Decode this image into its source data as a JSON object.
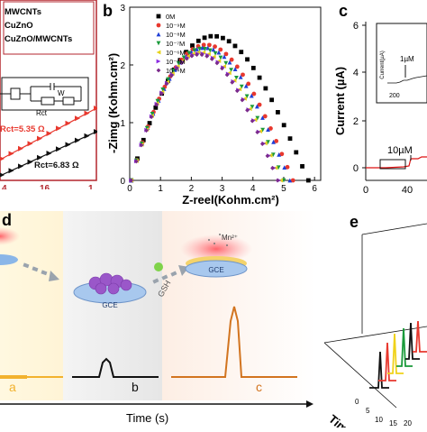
{
  "panels": {
    "a": {
      "legend": [
        "MWCNTs",
        "CuZnO",
        "CuZnO/MWCNTs"
      ],
      "legend_sub": "x",
      "circuit_label": "Rct",
      "circuit_w": "W",
      "ann_red": "Rct=5.35 Ω",
      "ann_black": "Rct=6.83 Ω",
      "xticks": [
        "4",
        "16",
        "1"
      ],
      "colors": {
        "red": "#e8382e",
        "black": "#111111",
        "border": "#b3262d"
      }
    },
    "b": {
      "label": "b",
      "legend": [
        "0M",
        "10⁻⁹M",
        "10⁻⁸M",
        "10⁻⁷M",
        "10⁻⁶M",
        "10⁻⁵M",
        "10⁻⁴M"
      ],
      "xlabel": "Z-reel(Kohm.cm²)",
      "ylabel": "-Zimg (Kohm.cm²)"
    },
    "c": {
      "label": "c",
      "ylabel": "Current (µA)",
      "yticks": [
        "0",
        "2",
        "4",
        "6"
      ],
      "xticks": [
        "0",
        "40"
      ],
      "annotation": "10µM",
      "inset": {
        "ylabel": "Current(µA)",
        "annotation": "1µM",
        "xtick": "200"
      }
    },
    "d": {
      "label": "d",
      "electrode": "GCE",
      "ion": "Mn²⁺",
      "reagent": "GSH",
      "peak_labels": [
        "a",
        "b",
        "c"
      ],
      "xlabel": "Time (s)"
    },
    "e": {
      "label": "e",
      "ylabel": "Time (s)",
      "ticks": [
        "0",
        "5",
        "10",
        "15",
        "20"
      ]
    }
  },
  "chart_data": [
    {
      "type": "scatter",
      "title": "",
      "xlabel": "Z-reel(Kohm.cm²)",
      "ylabel": "-Zimg (Kohm.cm²)",
      "xlim": [
        0,
        6.2
      ],
      "ylim": [
        0,
        3
      ],
      "xticks": [
        0,
        1,
        2,
        3,
        4,
        5,
        6
      ],
      "yticks": [
        0,
        1,
        2,
        3
      ],
      "legend_position": "top-left",
      "series": [
        {
          "name": "0M",
          "color": "#000000",
          "marker": "square",
          "d": 5.8,
          "ymax": 2.5
        },
        {
          "name": "10⁻⁹M",
          "color": "#e8382e",
          "marker": "circle",
          "d": 5.3,
          "ymax": 2.35
        },
        {
          "name": "10⁻⁸M",
          "color": "#1f3fd6",
          "marker": "triangle-up",
          "d": 5.2,
          "ymax": 2.3
        },
        {
          "name": "10⁻⁷M",
          "color": "#1a9a3a",
          "marker": "triangle-down",
          "d": 5.0,
          "ymax": 2.28
        },
        {
          "name": "10⁻⁶M",
          "color": "#e6d21a",
          "marker": "triangle-left",
          "d": 4.9,
          "ymax": 2.22
        },
        {
          "name": "10⁻⁵M",
          "color": "#8a2be2",
          "marker": "triangle-right",
          "d": 4.85,
          "ymax": 2.2
        },
        {
          "name": "10⁻⁴M",
          "color": "#7a2a8a",
          "marker": "diamond",
          "d": 4.8,
          "ymax": 2.18
        }
      ]
    }
  ]
}
